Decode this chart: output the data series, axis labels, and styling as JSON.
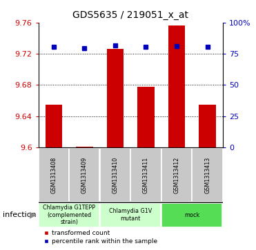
{
  "title": "GDS5635 / 219051_x_at",
  "samples": [
    "GSM1313408",
    "GSM1313409",
    "GSM1313410",
    "GSM1313411",
    "GSM1313412",
    "GSM1313413"
  ],
  "red_values": [
    9.655,
    9.601,
    9.726,
    9.678,
    9.756,
    9.655
  ],
  "blue_values": [
    9.729,
    9.727,
    9.731,
    9.729,
    9.73,
    9.729
  ],
  "ylim_left": [
    9.6,
    9.76
  ],
  "ylim_right": [
    0,
    100
  ],
  "yticks_left": [
    9.6,
    9.64,
    9.68,
    9.72,
    9.76
  ],
  "yticks_right": [
    0,
    25,
    50,
    75,
    100
  ],
  "ytick_labels_right": [
    "0",
    "25",
    "50",
    "75",
    "100%"
  ],
  "gridlines": [
    9.64,
    9.68,
    9.72
  ],
  "groups": [
    {
      "label": "Chlamydia G1TEPP\n(complemented\nstrain)",
      "start": 0,
      "end": 2,
      "color": "#ccffcc"
    },
    {
      "label": "Chlamydia G1V\nmutant",
      "start": 2,
      "end": 4,
      "color": "#ccffcc"
    },
    {
      "label": "mock",
      "start": 4,
      "end": 6,
      "color": "#55dd55"
    }
  ],
  "infection_label": "infection",
  "bar_color": "#cc0000",
  "dot_color": "#0000bb",
  "bar_width": 0.55,
  "left_tick_color": "#cc0000",
  "right_tick_color": "#0000bb",
  "sample_box_color": "#c8c8c8",
  "bg_color": "#ffffff"
}
